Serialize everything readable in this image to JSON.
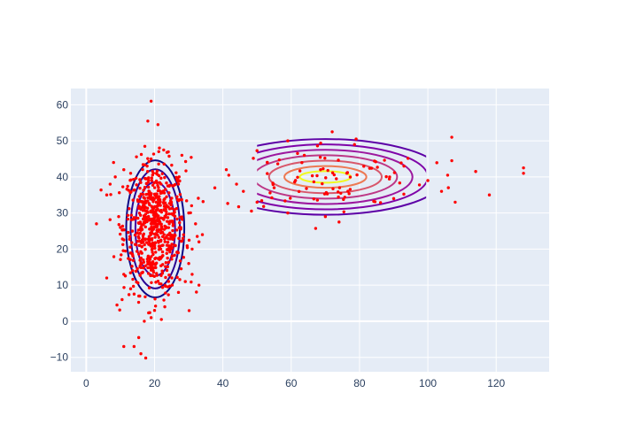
{
  "chart_data": {
    "type": "scatter",
    "title": "",
    "xlabel": "",
    "ylabel": "",
    "xlim": [
      -4.5,
      135.5
    ],
    "ylim": [
      -14,
      64.5
    ],
    "x_ticks": [
      0,
      20,
      40,
      60,
      80,
      100,
      120
    ],
    "y_ticks": [
      -10,
      0,
      10,
      20,
      30,
      40,
      50,
      60
    ],
    "x_tick_labels": [
      "0",
      "20",
      "40",
      "60",
      "80",
      "100",
      "120"
    ],
    "y_tick_labels": [
      "−10",
      "0",
      "10",
      "20",
      "30",
      "40",
      "50",
      "60"
    ],
    "grid": true,
    "legend": false,
    "colors": {
      "plot_bg": "#e5ecf6",
      "grid": "#ffffff",
      "points": "#ff0000",
      "contour_scale": [
        "#0d0887",
        "#46039f",
        "#7201a8",
        "#9c179e",
        "#bd3786",
        "#d8576b",
        "#ed7953",
        "#fb9f3a",
        "#fdca26",
        "#f0f921"
      ]
    },
    "scatter_clusters": [
      {
        "center": [
          20,
          26
        ],
        "std": [
          4.5,
          9
        ],
        "count": 650
      },
      {
        "center": [
          70,
          40
        ],
        "std": [
          15,
          5
        ],
        "count": 90
      }
    ],
    "outliers": [
      [
        19,
        61
      ],
      [
        21,
        54.5
      ],
      [
        13,
        41
      ],
      [
        11,
        42
      ],
      [
        8,
        44
      ],
      [
        8.5,
        40
      ],
      [
        7,
        38
      ],
      [
        6,
        35
      ],
      [
        9.5,
        29
      ],
      [
        10,
        26
      ],
      [
        3,
        27
      ],
      [
        6,
        12
      ],
      [
        9,
        4.5
      ],
      [
        10.5,
        6
      ],
      [
        11,
        13
      ],
      [
        13,
        9
      ],
      [
        17,
        0
      ],
      [
        19,
        1
      ],
      [
        22,
        0.5
      ],
      [
        20,
        3
      ],
      [
        23,
        4
      ],
      [
        27,
        8
      ],
      [
        29,
        11
      ],
      [
        30,
        16
      ],
      [
        31,
        20
      ],
      [
        32,
        27
      ],
      [
        33,
        22
      ],
      [
        34,
        24
      ],
      [
        33,
        10
      ],
      [
        31,
        13
      ],
      [
        11,
        -7
      ],
      [
        14,
        -7
      ],
      [
        16,
        -9
      ],
      [
        28,
        46
      ],
      [
        27,
        38
      ],
      [
        30,
        30
      ],
      [
        72,
        52.5
      ],
      [
        79,
        50.5
      ],
      [
        59,
        50
      ],
      [
        107,
        51
      ],
      [
        107,
        44.5
      ],
      [
        108,
        33
      ],
      [
        106,
        37
      ],
      [
        104,
        36
      ],
      [
        100,
        39
      ],
      [
        114,
        41.5
      ],
      [
        118,
        35
      ],
      [
        128,
        42.5
      ],
      [
        128,
        41
      ],
      [
        74,
        27.5
      ],
      [
        70,
        29
      ],
      [
        59,
        30
      ],
      [
        41,
        42
      ],
      [
        44,
        38
      ],
      [
        46,
        36
      ],
      [
        50,
        33
      ],
      [
        53,
        44
      ],
      [
        55,
        37
      ],
      [
        90,
        34
      ],
      [
        93,
        43
      ]
    ],
    "contour_sets": [
      {
        "center": [
          20.2,
          25.6
        ],
        "levels": [
          {
            "rx": 8.5,
            "ry": 19,
            "color": "#0d0887"
          },
          {
            "rx": 7.2,
            "ry": 16.5,
            "color": "#2a0593"
          },
          {
            "rx": 5.8,
            "ry": 13,
            "color": "#46039f"
          }
        ]
      },
      {
        "center": [
          70,
          40
        ],
        "levels": [
          {
            "rx": 35,
            "ry": 10.5,
            "color": "#5d01a6"
          },
          {
            "rx": 30,
            "ry": 9.0,
            "color": "#7e03a8"
          },
          {
            "rx": 25.5,
            "ry": 7.5,
            "color": "#9c179e"
          },
          {
            "rx": 21,
            "ry": 6.0,
            "color": "#bd3786"
          },
          {
            "rx": 16.5,
            "ry": 4.5,
            "color": "#d8576b"
          },
          {
            "rx": 12,
            "ry": 3.0,
            "color": "#ed7953"
          },
          {
            "rx": 7.5,
            "ry": 1.6,
            "color": "#f0f921"
          }
        ],
        "clip_x": [
          50,
          99.5
        ]
      }
    ]
  }
}
